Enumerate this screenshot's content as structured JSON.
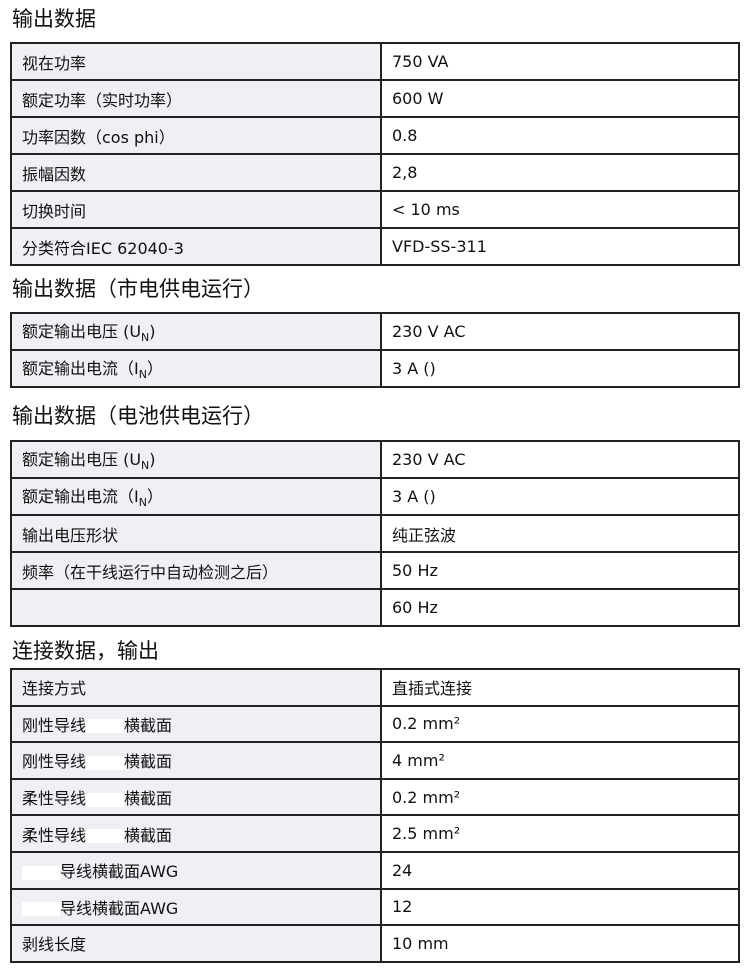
{
  "sections": [
    {
      "title": "输出数据",
      "rows": [
        {
          "k": "视在功率",
          "v": "750 VA"
        },
        {
          "k": "额定功率（实时功率）",
          "v": "600 W"
        },
        {
          "k": "功率因数（cos phi）",
          "v": "0.8"
        },
        {
          "k": "振幅因数",
          "v": "2,8"
        },
        {
          "k": "切换时间",
          "v": "< 10 ms"
        },
        {
          "k": "分类符合IEC 62040-3",
          "v": "VFD-SS-311"
        }
      ]
    },
    {
      "title": "输出数据（市电供电运行）",
      "rows": [
        {
          "k": "额定输出电压 (U",
          "sub": "N",
          "post": ")",
          "v": "230 V AC"
        },
        {
          "k": "额定输出电流（I",
          "sub": "N",
          "post": "）",
          "v": "3 A ()"
        }
      ]
    },
    {
      "title": "输出数据（电池供电运行）",
      "rows": [
        {
          "k": "额定输出电压 (U",
          "sub": "N",
          "post": ")",
          "v": "230 V AC"
        },
        {
          "k": "额定输出电流（I",
          "sub": "N",
          "post": "）",
          "v": "3 A ()"
        },
        {
          "k": "输出电压形状",
          "v": "纯正弦波"
        },
        {
          "k": "频率（在干线运行中自动检测之后）",
          "v": "50 Hz"
        },
        {
          "k": "",
          "v": "60 Hz"
        }
      ]
    },
    {
      "title": "连接数据，输出",
      "rows": [
        {
          "k": "连接方式",
          "v": "直插式连接"
        },
        {
          "k": "刚性导线",
          "mask": true,
          "post": "横截面",
          "v": "0.2 mm²"
        },
        {
          "k": "刚性导线",
          "mask": true,
          "post": "横截面",
          "v": "4 mm²"
        },
        {
          "k": "柔性导线",
          "mask": true,
          "post": "横截面",
          "v": "0.2 mm²"
        },
        {
          "k": "柔性导线",
          "mask": true,
          "post": "横截面",
          "v": "2.5 mm²"
        },
        {
          "k": "",
          "mask": true,
          "post": "导线横截面AWG",
          "v": "24"
        },
        {
          "k": "",
          "mask": true,
          "post": "导线横截面AWG",
          "v": "12"
        },
        {
          "k": "剥线长度",
          "v": "10 mm"
        }
      ]
    }
  ]
}
